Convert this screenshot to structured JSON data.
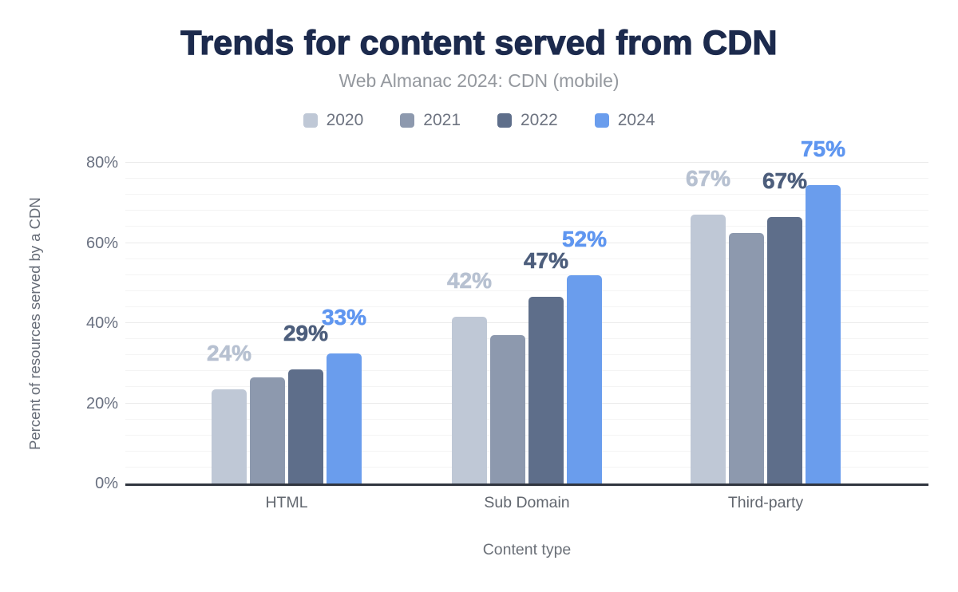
{
  "chart_data": {
    "type": "bar",
    "title": "Trends for content served from CDN",
    "subtitle": "Web Almanac 2024: CDN (mobile)",
    "xlabel": "Content type",
    "ylabel": "Percent of resources served by a CDN",
    "categories": [
      "HTML",
      "Sub Domain",
      "Third-party"
    ],
    "series": [
      {
        "name": "2020",
        "color": "#bfc8d6",
        "label_color": "#b7c1d1",
        "values": [
          23.5,
          41.5,
          67
        ],
        "labels": [
          "24%",
          "42%",
          "67%"
        ]
      },
      {
        "name": "2021",
        "color": "#8d99ae",
        "label_color": null,
        "values": [
          26.5,
          37,
          62.5
        ],
        "labels": [
          null,
          null,
          null
        ]
      },
      {
        "name": "2022",
        "color": "#5e6e8a",
        "label_color": "#4d5e7c",
        "values": [
          28.5,
          46.5,
          66.5
        ],
        "labels": [
          "29%",
          "47%",
          "67%"
        ]
      },
      {
        "name": "2024",
        "color": "#6a9ded",
        "label_color": "#5f96f0",
        "values": [
          32.5,
          52,
          74.5
        ],
        "labels": [
          "33%",
          "52%",
          "75%"
        ]
      }
    ],
    "y_ticks": [
      {
        "label": "0%",
        "value": 0
      },
      {
        "label": "20%",
        "value": 20
      },
      {
        "label": "40%",
        "value": 40
      },
      {
        "label": "60%",
        "value": 60
      },
      {
        "label": "80%",
        "value": 80
      }
    ],
    "ylim": [
      0,
      80
    ],
    "grid": {
      "major_interval": 20,
      "minor_interval": 4,
      "gridlines_on": true
    },
    "legend_position": "top"
  },
  "colors": {
    "title": "#1c2a4d",
    "subtitle": "#94989e",
    "legend_text": "#6d7380",
    "axis_text": "#697080",
    "baseline": "#30353f",
    "gridline_minor": "#f4f4f4",
    "gridline_major": "#ebebeb",
    "background": "#ffffff"
  }
}
